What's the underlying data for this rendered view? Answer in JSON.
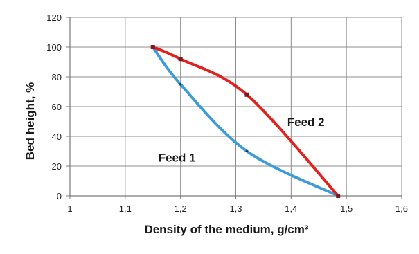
{
  "chart_data": {
    "type": "line",
    "xlabel": "Density of the medium, g/cm³",
    "ylabel": "Bed height, %",
    "xlim": [
      1,
      1.6
    ],
    "ylim": [
      0,
      120
    ],
    "x_ticks": [
      "1",
      "1,1",
      "1,2",
      "1,3",
      "1,4",
      "1,5",
      "1,6"
    ],
    "y_ticks": [
      "0",
      "20",
      "40",
      "60",
      "80",
      "100",
      "120"
    ],
    "grid": true,
    "legend": "none",
    "series": [
      {
        "name": "Feed 1",
        "color": "#3c9bd9",
        "x": [
          1.15,
          1.2,
          1.32,
          1.485
        ],
        "y": [
          100,
          75,
          30,
          0
        ]
      },
      {
        "name": "Feed 2",
        "color": "#e3201c",
        "x": [
          1.15,
          1.2,
          1.32,
          1.485
        ],
        "y": [
          100,
          92,
          68,
          0
        ]
      }
    ],
    "annotations": [
      {
        "text": "Feed 1",
        "x": 1.16,
        "y": 23
      },
      {
        "text": "Feed 2",
        "x": 1.393,
        "y": 47
      }
    ]
  }
}
